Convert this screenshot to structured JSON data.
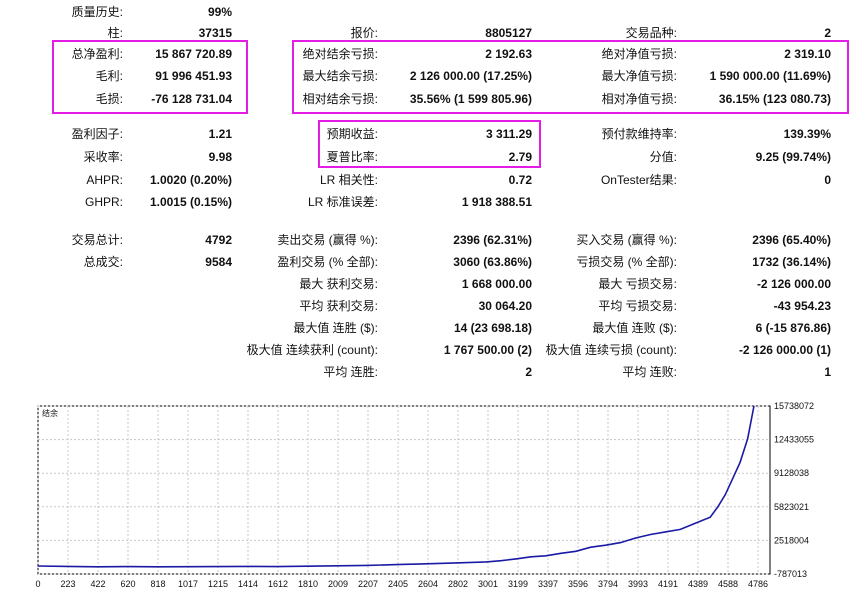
{
  "rows": [
    {
      "c1": {
        "label": "质量历史:",
        "value": "99%"
      }
    },
    {
      "c1": {
        "label": "柱:",
        "value": "37315"
      },
      "c2": {
        "label": "报价:",
        "value": "8805127"
      },
      "c3": {
        "label": "交易品种:",
        "value": "2"
      }
    },
    {
      "c1": {
        "label": "总净盈利:",
        "value": "15 867 720.89"
      },
      "c2": {
        "label": "绝对结余亏损:",
        "value": "2 192.63"
      },
      "c3": {
        "label": "绝对净值亏损:",
        "value": "2 319.10"
      }
    },
    {
      "c1": {
        "label": "毛利:",
        "value": "91 996 451.93"
      },
      "c2": {
        "label": "最大结余亏损:",
        "value": "2 126 000.00 (17.25%)"
      },
      "c3": {
        "label": "最大净值亏损:",
        "value": "1 590 000.00 (11.69%)"
      }
    },
    {
      "c1": {
        "label": "毛损:",
        "value": "-76 128 731.04"
      },
      "c2": {
        "label": "相对结余亏损:",
        "value": "35.56% (1 599 805.96)"
      },
      "c3": {
        "label": "相对净值亏损:",
        "value": "36.15% (123 080.73)"
      }
    },
    {
      "c1": {
        "label": "盈利因子:",
        "value": "1.21"
      },
      "c2": {
        "label": "预期收益:",
        "value": "3 311.29"
      },
      "c3": {
        "label": "预付款维持率:",
        "value": "139.39%"
      }
    },
    {
      "c1": {
        "label": "采收率:",
        "value": "9.98"
      },
      "c2": {
        "label": "夏普比率:",
        "value": "2.79"
      },
      "c3": {
        "label": "分值:",
        "value": "9.25 (99.74%)"
      }
    },
    {
      "c1": {
        "label": "AHPR:",
        "value": "1.0020 (0.20%)"
      },
      "c2": {
        "label": "LR 相关性:",
        "value": "0.72"
      },
      "c3": {
        "label": "OnTester结果:",
        "value": "0"
      }
    },
    {
      "c1": {
        "label": "GHPR:",
        "value": "1.0015 (0.15%)"
      },
      "c2": {
        "label": "LR 标准误差:",
        "value": "1 918 388.51"
      }
    },
    {
      "c1": {
        "label": "交易总计:",
        "value": "4792"
      },
      "c2": {
        "label": "卖出交易 (赢得 %):",
        "value": "2396 (62.31%)"
      },
      "c3": {
        "label": "买入交易 (赢得 %):",
        "value": "2396 (65.40%)"
      }
    },
    {
      "c1": {
        "label": "总成交:",
        "value": "9584"
      },
      "c2": {
        "label": "盈利交易 (% 全部):",
        "value": "3060 (63.86%)"
      },
      "c3": {
        "label": "亏损交易 (% 全部):",
        "value": "1732 (36.14%)"
      }
    },
    {
      "c2": {
        "label": "最大 获利交易:",
        "value": "1 668 000.00"
      },
      "c3": {
        "label": "最大 亏损交易:",
        "value": "-2 126 000.00"
      }
    },
    {
      "c2": {
        "label": "平均 获利交易:",
        "value": "30 064.20"
      },
      "c3": {
        "label": "平均 亏损交易:",
        "value": "-43 954.23"
      }
    },
    {
      "c2": {
        "label": "最大值 连胜 ($):",
        "value": "14 (23 698.18)"
      },
      "c3": {
        "label": "最大值 连败 ($):",
        "value": "6 (-15 876.86)"
      }
    },
    {
      "c2": {
        "label": "极大值 连续获利 (count):",
        "value": "1 767 500.00 (2)"
      },
      "c3": {
        "label": "极大值 连续亏损 (count):",
        "value": "-2 126 000.00 (1)"
      }
    },
    {
      "c2": {
        "label": "平均 连胜:",
        "value": "2"
      },
      "c3": {
        "label": "平均 连败:",
        "value": "1"
      }
    }
  ],
  "colors": {
    "highlight": "#e31de3",
    "series": "#1a1aa6"
  },
  "chart_data": {
    "type": "line",
    "title": "",
    "series": [
      {
        "name": "结余",
        "x": [
          0,
          200,
          400,
          600,
          800,
          1000,
          1200,
          1400,
          1600,
          1800,
          2000,
          2200,
          2400,
          2600,
          2800,
          3000,
          3100,
          3200,
          3300,
          3400,
          3500,
          3600,
          3700,
          3800,
          3900,
          4000,
          4100,
          4200,
          4300,
          4400,
          4500,
          4550,
          4600,
          4650,
          4700,
          4750,
          4792
        ],
        "values": [
          0,
          -40000,
          -80000,
          -60000,
          -80000,
          -70000,
          -60000,
          -40000,
          -60000,
          -20000,
          20000,
          60000,
          140000,
          220000,
          300000,
          400000,
          520000,
          700000,
          900000,
          1000000,
          1250000,
          1450000,
          1850000,
          2050000,
          2300000,
          2750000,
          3100000,
          3350000,
          3600000,
          4200000,
          4800000,
          5800000,
          7000000,
          8600000,
          10200000,
          12500000,
          15700000
        ]
      }
    ],
    "x_ticks": [
      "0",
      "223",
      "422",
      "620",
      "818",
      "1017",
      "1215",
      "1414",
      "1612",
      "1810",
      "2009",
      "2207",
      "2405",
      "2604",
      "2802",
      "3001",
      "3199",
      "3397",
      "3596",
      "3794",
      "3993",
      "4191",
      "4389",
      "4588",
      "4786"
    ],
    "y_ticks": [
      "15738072",
      "12433055",
      "9128038",
      "5823021",
      "2518004",
      "-787013"
    ],
    "xlim": [
      0,
      4900
    ],
    "ylim": [
      -787013,
      15738072
    ],
    "grid": true
  }
}
